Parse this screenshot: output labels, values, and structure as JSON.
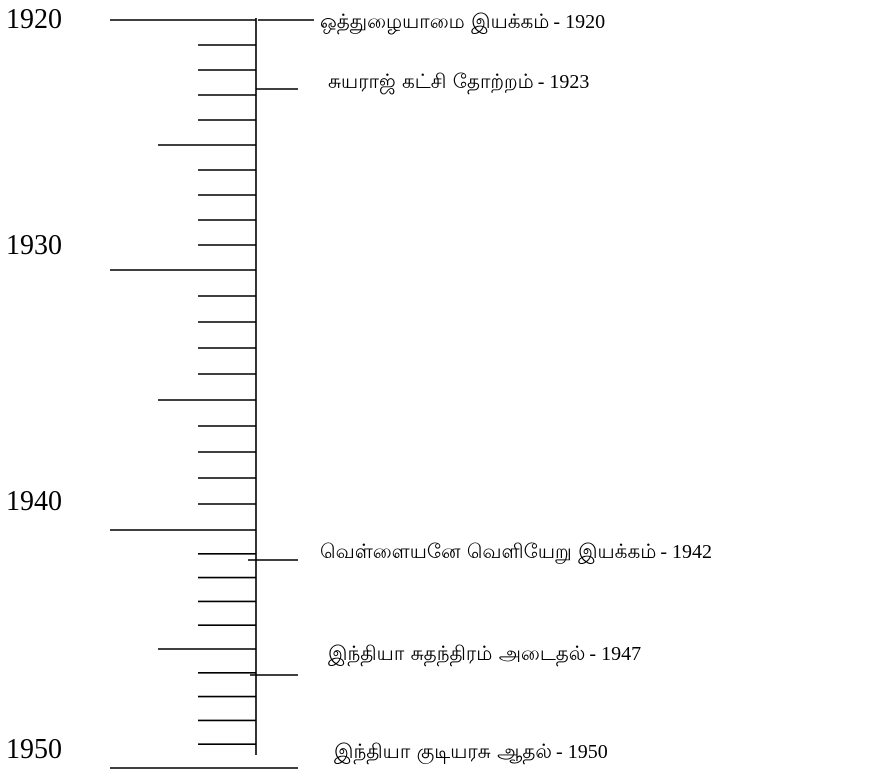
{
  "timeline": {
    "start_year": 1920,
    "end_year": 1950,
    "decade_labels": [
      "1920",
      "1930",
      "1940",
      "1950"
    ],
    "events": [
      {
        "name": "ஒத்துழையாமை இயக்கம்",
        "year": 1920,
        "year_text": "1920"
      },
      {
        "name": "சுயராஜ் கட்சி தோற்றம்",
        "year": 1923,
        "year_text": "1923"
      },
      {
        "name": "வெள்ளையனே வெளியேறு இயக்கம்",
        "year": 1942,
        "year_text": "1942"
      },
      {
        "name": "இந்தியா சுதந்திரம் அடைதல்",
        "year": 1947,
        "year_text": "1947"
      },
      {
        "name": "இந்தியா குடியரசு ஆதல்",
        "year": 1950,
        "year_text": "1950"
      }
    ]
  }
}
